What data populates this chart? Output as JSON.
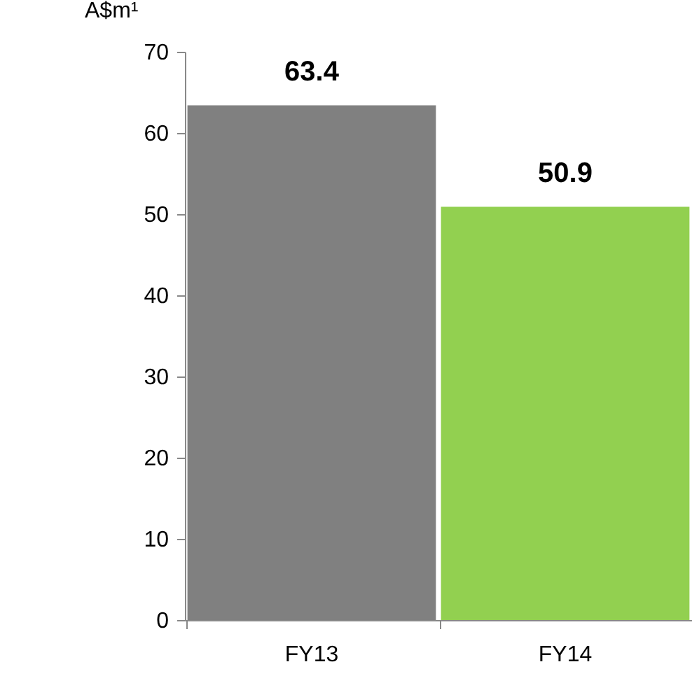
{
  "chart_data": {
    "type": "bar",
    "ylabel": "A$m¹",
    "categories": [
      "FY13",
      "FY14"
    ],
    "values": [
      63.4,
      50.9
    ],
    "colors": [
      "#808080",
      "#92d050"
    ],
    "ylim": [
      0,
      70
    ],
    "yticks": [
      0,
      10,
      20,
      30,
      40,
      50,
      60,
      70
    ],
    "data_labels": true,
    "grid": false,
    "legend": false
  }
}
